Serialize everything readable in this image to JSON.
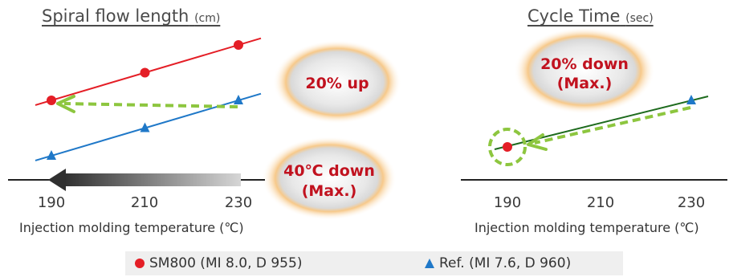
{
  "chart_data": [
    {
      "type": "line",
      "title": "Spiral flow length",
      "title_unit": "(cm)",
      "xlabel": "Injection molding temperature (℃)",
      "x": [
        190,
        210,
        230
      ],
      "x_ticks": [
        "190",
        "210",
        "230"
      ],
      "series": [
        {
          "name": "SM800 (MI 8.0, D 955)",
          "color": "#e41e26",
          "marker": "circle",
          "values": [
            2,
            3,
            4
          ]
        },
        {
          "name": "Ref. (MI 7.6, D 960)",
          "color": "#1f78c8",
          "marker": "triangle",
          "values": [
            0,
            1,
            2
          ]
        }
      ],
      "annotations": [
        "20% up",
        "40℃ down",
        "(Max.)"
      ],
      "grid": false
    },
    {
      "type": "line",
      "title": "Cycle Time",
      "title_unit": "(sec)",
      "xlabel": "Injection molding temperature (℃)",
      "x": [
        190,
        210,
        230
      ],
      "x_ticks": [
        "190",
        "210",
        "230"
      ],
      "series": [
        {
          "name": "SM800 (MI 8.0, D 955)",
          "color": "#e41e26",
          "marker": "circle",
          "x": [
            190
          ],
          "values": [
            0
          ]
        },
        {
          "name": "Ref. (MI 7.6, D 960)",
          "color": "#1f78c8",
          "marker": "triangle",
          "x": [
            230
          ],
          "values": [
            1
          ]
        }
      ],
      "trend_color": "#1e6b1e",
      "annotations": [
        "20% down",
        "(Max.)"
      ],
      "grid": false
    }
  ],
  "legend": {
    "sm800": "SM800 (MI 8.0, D 955)",
    "ref": "Ref. (MI 7.6, D 960)"
  },
  "colors": {
    "arrow_green": "#8dc63f",
    "callout_text": "#c1121f",
    "glow": "#f5a623"
  }
}
